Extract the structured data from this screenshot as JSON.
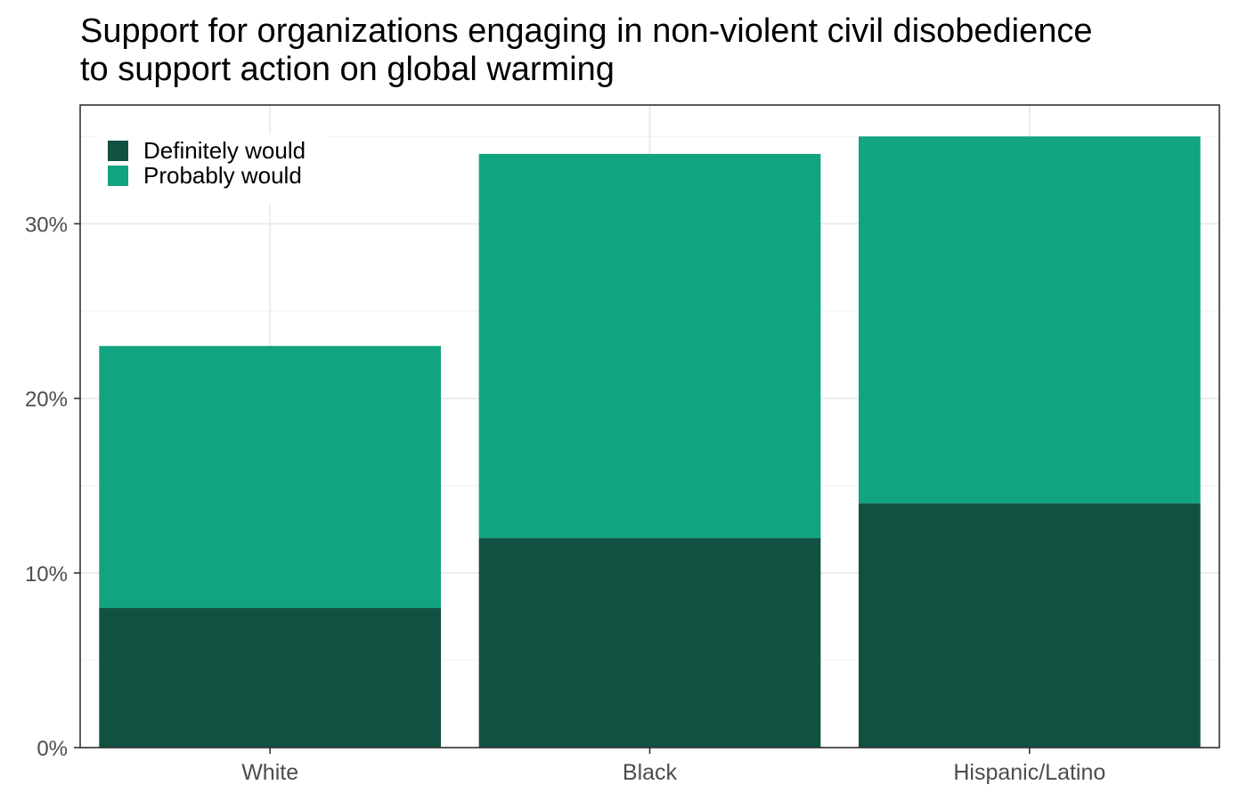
{
  "chart_data": {
    "type": "bar",
    "stacked": true,
    "title_lines": [
      "Support for organizations engaging in non-violent civil disobedience",
      "to support action on global warming"
    ],
    "xlabel": "",
    "ylabel": "",
    "categories": [
      "White",
      "Black",
      "Hispanic/Latino"
    ],
    "series": [
      {
        "name": "Definitely would",
        "color": "#115142",
        "values": [
          8,
          12,
          14
        ]
      },
      {
        "name": "Probably would",
        "color": "#12a480",
        "values": [
          15,
          22,
          21
        ]
      }
    ],
    "ylim": [
      0,
      36.8
    ],
    "yticks": [
      0,
      10,
      20,
      30
    ],
    "ytick_labels": [
      "0%",
      "10%",
      "20%",
      "30%"
    ],
    "grid": true,
    "legend_position": "top-left (inside)"
  }
}
